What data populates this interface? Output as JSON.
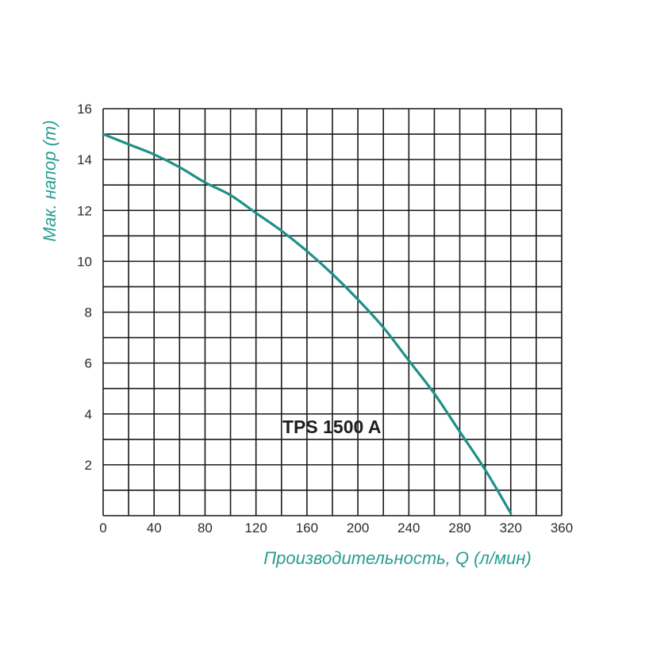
{
  "chart_data": {
    "type": "line",
    "title": "",
    "model_label": "TPS 1500 A",
    "xlabel": "Производительность, Q (л/мин)",
    "ylabel": "Мак. напор (m)",
    "xlim": [
      0,
      360
    ],
    "ylim": [
      0,
      16
    ],
    "x_ticks": [
      0,
      40,
      80,
      120,
      160,
      200,
      240,
      280,
      320,
      360
    ],
    "y_ticks": [
      2,
      4,
      6,
      8,
      10,
      12,
      14,
      16
    ],
    "x_grid_step": 20,
    "y_grid_step": 1,
    "grid": true,
    "colors": {
      "curve": "#1e9185",
      "axis_title": "#2a9d92",
      "grid": "#1a1a1a"
    },
    "series": [
      {
        "name": "TPS 1500 A",
        "x": [
          0,
          20,
          40,
          60,
          80,
          100,
          120,
          140,
          160,
          180,
          200,
          220,
          240,
          260,
          280,
          300,
          320
        ],
        "y": [
          15.0,
          14.6,
          14.2,
          13.7,
          13.1,
          12.6,
          11.9,
          11.2,
          10.4,
          9.5,
          8.5,
          7.4,
          6.1,
          4.8,
          3.3,
          1.8,
          0.1
        ]
      }
    ]
  }
}
